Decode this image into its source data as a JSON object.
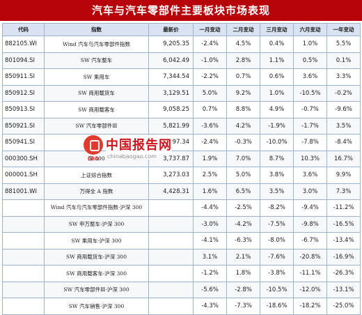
{
  "title": "汽车与汽车零部件主要板块市场表现",
  "columns": [
    "代码",
    "指数",
    "最新价",
    "一月变动",
    "二月变动",
    "三月变动",
    "六月变动",
    "一年变动"
  ],
  "rows": [
    {
      "code": "882105.WI",
      "name": "Wind 汽车与汽车零部件指数",
      "price": "9,205.35",
      "m1": "-2.4%",
      "m2": "4.5%",
      "m3": "0.4%",
      "m6": "1.0%",
      "y1": "5.5%"
    },
    {
      "code": "801094.SI",
      "name": "SW 汽车整车",
      "price": "6,042.49",
      "m1": "-1.0%",
      "m2": "2.8%",
      "m3": "1.1%",
      "m6": "0.5%",
      "y1": "0.1%"
    },
    {
      "code": "850911.SI",
      "name": "SW 乘用车",
      "price": "7,344.54",
      "m1": "-2.2%",
      "m2": "0.7%",
      "m3": "0.6%",
      "m6": "3.6%",
      "y1": "3.3%"
    },
    {
      "code": "850912.SI",
      "name": "SW 商用载货车",
      "price": "3,129.51",
      "m1": "5.0%",
      "m2": "9.2%",
      "m3": "1.0%",
      "m6": "-10.5%",
      "y1": "-0.2%"
    },
    {
      "code": "850913.SI",
      "name": "SW 商用载客车",
      "price": "9,058.25",
      "m1": "0.7%",
      "m2": "8.8%",
      "m3": "4.9%",
      "m6": "-0.7%",
      "y1": "-9.6%"
    },
    {
      "code": "850921.SI",
      "name": "SW 汽车零部件Ⅲ",
      "price": "5,821.99",
      "m1": "-3.6%",
      "m2": "4.2%",
      "m3": "-1.9%",
      "m6": "-1.7%",
      "y1": "3.5%"
    },
    {
      "code": "850941.SI",
      "name": "",
      "price": "097.34",
      "m1": "-2.4%",
      "m2": "-0.3%",
      "m3": "-10.0%",
      "m6": "-7.8%",
      "y1": "-8.4%"
    },
    {
      "code": "000300.SH",
      "name": "深 300",
      "price": "3,737.87",
      "m1": "1.9%",
      "m2": "7.0%",
      "m3": "8.7%",
      "m6": "10.3%",
      "y1": "16.7%"
    },
    {
      "code": "000001.SH",
      "name": "上证综合指数",
      "price": "3,273.03",
      "m1": "2.5%",
      "m2": "5.0%",
      "m3": "3.8%",
      "m6": "3.6%",
      "y1": "9.9%"
    },
    {
      "code": "881001.WI",
      "name": "万得全 A 指数",
      "price": "4,428.31",
      "m1": "1.6%",
      "m2": "6.5%",
      "m3": "3.5%",
      "m6": "3.0%",
      "y1": "7.3%"
    },
    {
      "code": "",
      "name": "Wind 汽车与汽车零部件指数-沪深 300",
      "price": "",
      "m1": "-4.4%",
      "m2": "-2.5%",
      "m3": "-8.2%",
      "m6": "-9.4%",
      "y1": "-11.2%"
    },
    {
      "code": "",
      "name": "SW 申万整车-沪深 300",
      "price": "",
      "m1": "-3.0%",
      "m2": "-4.2%",
      "m3": "-7.5%",
      "m6": "-9.8%",
      "y1": "-16.5%"
    },
    {
      "code": "",
      "name": "SW 乘用车-沪深 300",
      "price": "",
      "m1": "-4.1%",
      "m2": "-6.3%",
      "m3": "-8.0%",
      "m6": "-6.7%",
      "y1": "-13.4%"
    },
    {
      "code": "",
      "name": "SW 商用载货车-沪深 300",
      "price": "",
      "m1": "3.1%",
      "m2": "2.1%",
      "m3": "-7.6%",
      "m6": "-20.8%",
      "y1": "-16.9%"
    },
    {
      "code": "",
      "name": "SW 商用载客车-沪深 300",
      "price": "",
      "m1": "-1.2%",
      "m2": "1.8%",
      "m3": "-3.8%",
      "m6": "-11.1%",
      "y1": "-26.3%"
    },
    {
      "code": "",
      "name": "SW 汽车零部件Ⅲ-沪深 300",
      "price": "",
      "m1": "-5.6%",
      "m2": "-2.8%",
      "m3": "-10.5%",
      "m6": "-12.0%",
      "y1": "-13.1%"
    },
    {
      "code": "",
      "name": "SW 汽车销售-沪深 300",
      "price": "",
      "m1": "-4.3%",
      "m2": "-7.3%",
      "m3": "-18.6%",
      "m6": "-18.2%",
      "y1": "-25.0%"
    }
  ],
  "watermark": {
    "title": "中国报告网",
    "url": "chinabaogao.com",
    "logo_text": "CBG"
  },
  "colors": {
    "title_bg": "#b6040a",
    "header_bg": "#d9e3f1",
    "border": "#9cb2d2",
    "watermark": "#d0141c"
  }
}
